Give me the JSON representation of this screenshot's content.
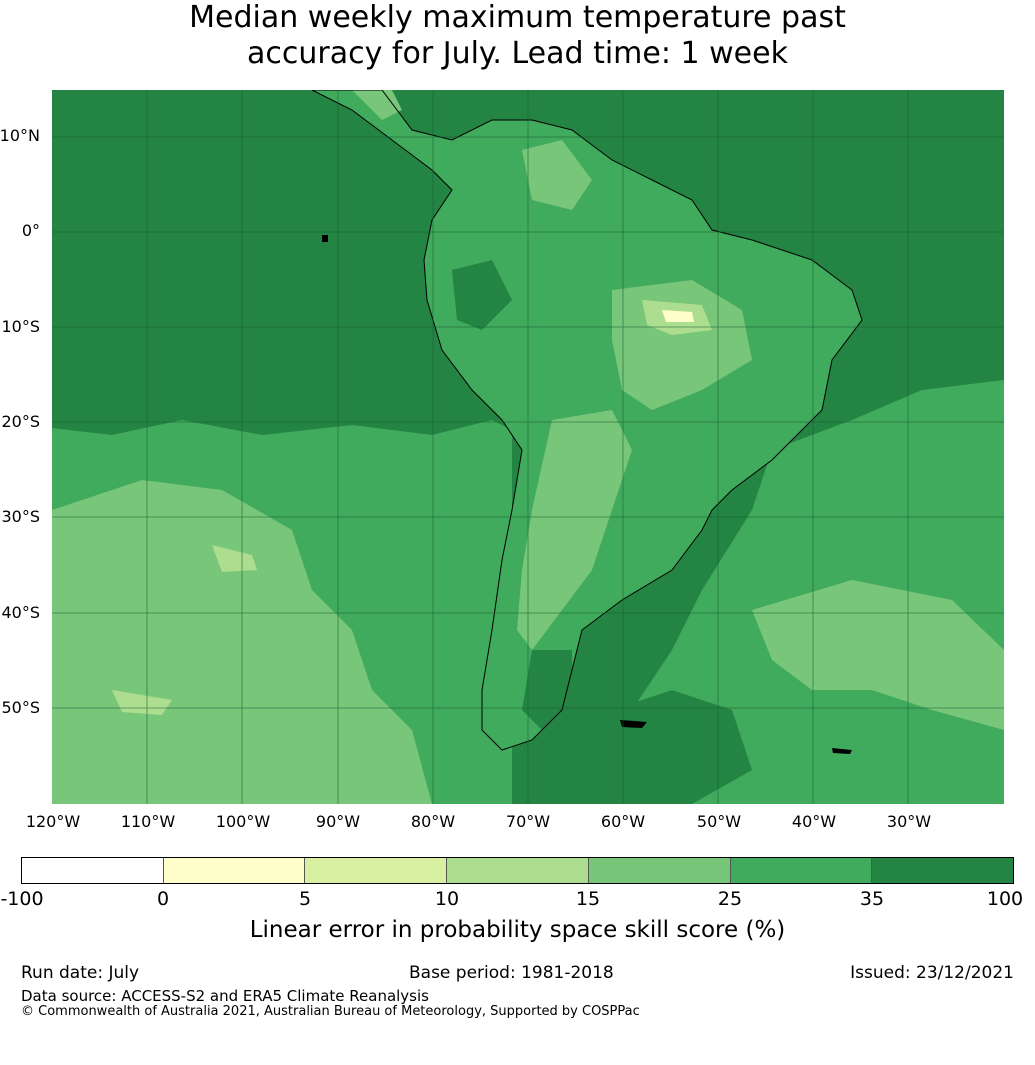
{
  "title": {
    "line1": "Median weekly maximum temperature past",
    "line2": "accuracy for July. Lead time: 1 week"
  },
  "map": {
    "lat_labels": [
      "10°N",
      "0°",
      "10°S",
      "20°S",
      "30°S",
      "40°S",
      "50°S"
    ],
    "lon_labels": [
      "120°W",
      "110°W",
      "100°W",
      "90°W",
      "80°W",
      "70°W",
      "60°W",
      "50°W",
      "40°W",
      "30°W"
    ],
    "colors": {
      "ocean_high": "#238443",
      "mid": "#41ab5d",
      "low": "#78c679",
      "lower": "#addd8e",
      "lowest": "#d9f0a3",
      "coast": "#000000"
    }
  },
  "colorbar": {
    "ticks": [
      "-100",
      "0",
      "5",
      "10",
      "15",
      "25",
      "35",
      "100"
    ],
    "colors": [
      "#ffffff",
      "#ffffcc",
      "#d9f0a3",
      "#addd8e",
      "#78c679",
      "#41ab5d",
      "#238443"
    ],
    "label": "Linear error in probability space skill score (%)"
  },
  "footer": {
    "run_date": "Run date: July",
    "base_period": "Base period: 1981-2018",
    "issued": "Issued: 23/12/2021",
    "data_source": "Data source: ACCESS-S2 and ERA5 Climate Reanalysis",
    "copyright": "© Commonwealth of Australia 2021, Australian Bureau of Meteorology, Supported by COSPPac"
  }
}
